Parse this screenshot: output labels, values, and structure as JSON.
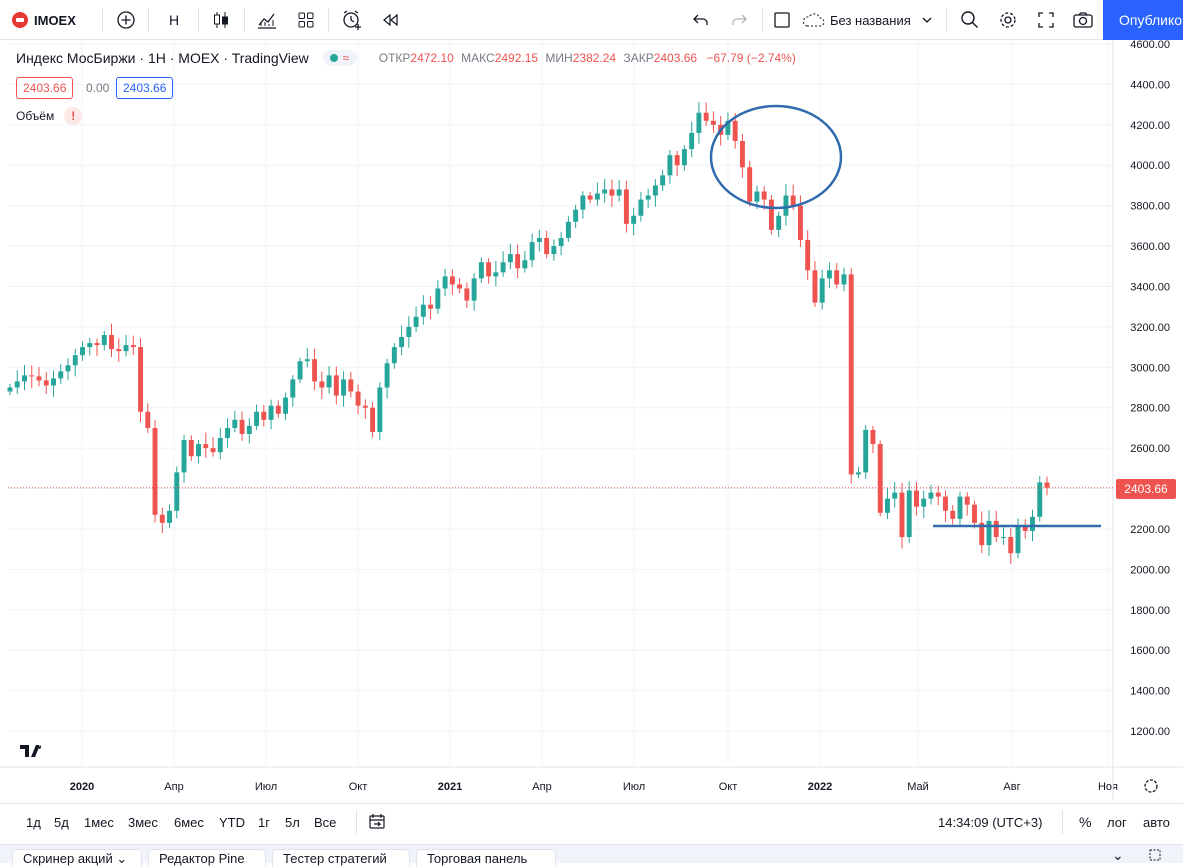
{
  "toolbar": {
    "symbol": "IMOEX",
    "interval": "H",
    "layout_name": "Без названия",
    "publish_label": "Опублико"
  },
  "legend": {
    "title": "Индекс МосБиржи · 1Н · MOEX · TradingView",
    "open_label": "ОТКР",
    "open_value": "2472.10",
    "high_label": "МАКС",
    "high_value": "2492.15",
    "low_label": "МИН",
    "low_value": "2382.24",
    "close_label": "ЗАКР",
    "close_value": "2403.66",
    "change": "−67.79 (−2.74%)",
    "bid": "2403.66",
    "spread": "0.00",
    "ask": "2403.66",
    "volume_label": "Объём",
    "last_price": "2403.66"
  },
  "bottom": {
    "ranges": [
      "1д",
      "5д",
      "1мес",
      "3мес",
      "6мес",
      "YTD",
      "1г",
      "5л",
      "Все"
    ],
    "time": "14:34:09 (UTC+3)",
    "percent": "%",
    "log": "лог",
    "auto": "авто"
  },
  "panels": [
    "Скринер акций",
    "Редактор Pine",
    "Тестер стратегий",
    "Торговая панель"
  ],
  "colors": {
    "up": "#26a69a",
    "down": "#ef5350",
    "accent": "#2962ff",
    "annotation": "#2f6bad"
  },
  "chart_data": {
    "type": "candlestick",
    "title": "Индекс МосБиржи · 1Н · MOEX · TradingView",
    "ylim": [
      1100,
      4600
    ],
    "y_ticks": [
      "4600.00",
      "4400.00",
      "4200.00",
      "4000.00",
      "3800.00",
      "3600.00",
      "3400.00",
      "3200.00",
      "3000.00",
      "2800.00",
      "2600.00",
      "2400.00",
      "2200.00",
      "2000.00",
      "1800.00",
      "1600.00",
      "1400.00",
      "1200.00"
    ],
    "x_ticks": [
      "2020",
      "Апр",
      "Июл",
      "Окт",
      "2021",
      "Апр",
      "Июл",
      "Окт",
      "2022",
      "Май",
      "Авг",
      "Ноя"
    ],
    "grid": true,
    "series": [
      {
        "close": [
          2900,
          2930,
          2960,
          2955,
          2935,
          2910,
          2945,
          2980,
          3010,
          3060,
          3100,
          3120,
          3110,
          3160,
          3090,
          3080,
          3110,
          3100,
          2780,
          2700,
          2270,
          2230,
          2290,
          2480,
          2640,
          2560,
          2620,
          2600,
          2580,
          2650,
          2700,
          2740,
          2670,
          2710,
          2780,
          2740,
          2810,
          2770,
          2850,
          2940,
          3030,
          3040,
          2930,
          2900,
          2960,
          2860,
          2940,
          2880,
          2810,
          2800,
          2680,
          2900,
          3020,
          3100,
          3150,
          3200,
          3250,
          3310,
          3290,
          3390,
          3450,
          3410,
          3390,
          3330,
          3440,
          3520,
          3450,
          3470,
          3520,
          3560,
          3490,
          3530,
          3620,
          3640,
          3560,
          3600,
          3640,
          3720,
          3780,
          3850,
          3830,
          3860,
          3880,
          3850,
          3880,
          3710,
          3750,
          3830,
          3850,
          3900,
          3950,
          4050,
          4000,
          4080,
          4160,
          4260,
          4220,
          4200,
          4150,
          4220,
          4120,
          3990,
          3820,
          3870,
          3830,
          3680,
          3750,
          3850,
          3800,
          3630,
          3480,
          3320,
          3440,
          3480,
          3410,
          3460,
          2470,
          2480,
          2690,
          2620,
          2280,
          2350,
          2380,
          2160,
          2390,
          2310,
          2350,
          2380,
          2360,
          2290,
          2250,
          2360,
          2320,
          2230,
          2120,
          2240,
          2160,
          2160,
          2080,
          2210,
          2190,
          2260,
          2430,
          2404
        ],
        "x_first": 1,
        "x_last": 145
      }
    ]
  }
}
